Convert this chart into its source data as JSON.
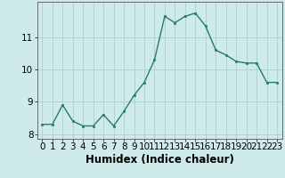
{
  "x": [
    0,
    1,
    2,
    3,
    4,
    5,
    6,
    7,
    8,
    9,
    10,
    11,
    12,
    13,
    14,
    15,
    16,
    17,
    18,
    19,
    20,
    21,
    22,
    23
  ],
  "y": [
    8.3,
    8.3,
    8.9,
    8.4,
    8.25,
    8.25,
    8.6,
    8.25,
    8.7,
    9.2,
    9.6,
    10.3,
    11.65,
    11.45,
    11.65,
    11.75,
    11.35,
    10.6,
    10.45,
    10.25,
    10.2,
    10.2,
    9.6,
    9.6
  ],
  "line_color": "#2a7a68",
  "marker_color": "#2a7a68",
  "bg_color": "#ceeaea",
  "grid_color": "#a8d0d0",
  "xlabel": "Humidex (Indice chaleur)",
  "ylim": [
    7.85,
    12.1
  ],
  "xlim": [
    -0.5,
    23.5
  ],
  "yticks": [
    8,
    9,
    10,
    11
  ],
  "xlabel_fontsize": 8.5,
  "tick_fontsize": 7.5
}
